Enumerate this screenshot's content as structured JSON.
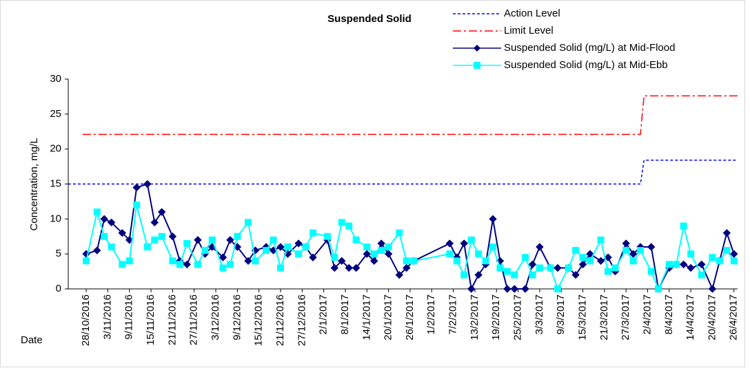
{
  "chart_data": {
    "type": "line",
    "title": "Suspended Solid",
    "x_label": "Date",
    "y_label": "Concentration, mg/L",
    "xlim": [
      "2016-10-23",
      "2017-04-27"
    ],
    "ylim": [
      0,
      30
    ],
    "yticks": [
      0,
      5,
      10,
      15,
      20,
      25,
      30
    ],
    "xticks": [
      {
        "value": "2016-10-28",
        "label": "28/10/2016"
      },
      {
        "value": "2016-11-03",
        "label": "3/11/2016"
      },
      {
        "value": "2016-11-09",
        "label": "9/11/2016"
      },
      {
        "value": "2016-11-15",
        "label": "15/11/2016"
      },
      {
        "value": "2016-11-21",
        "label": "21/11/2016"
      },
      {
        "value": "2016-11-27",
        "label": "27/11/2016"
      },
      {
        "value": "2016-12-03",
        "label": "3/12/2016"
      },
      {
        "value": "2016-12-09",
        "label": "9/12/2016"
      },
      {
        "value": "2016-12-15",
        "label": "15/12/2016"
      },
      {
        "value": "2016-12-21",
        "label": "21/12/2016"
      },
      {
        "value": "2016-12-27",
        "label": "27/12/2016"
      },
      {
        "value": "2017-01-02",
        "label": "2/1/2017"
      },
      {
        "value": "2017-01-08",
        "label": "8/1/2017"
      },
      {
        "value": "2017-01-14",
        "label": "14/1/2017"
      },
      {
        "value": "2017-01-20",
        "label": "20/1/2017"
      },
      {
        "value": "2017-01-26",
        "label": "26/1/2017"
      },
      {
        "value": "2017-02-01",
        "label": "1/2/2017"
      },
      {
        "value": "2017-02-07",
        "label": "7/2/2017"
      },
      {
        "value": "2017-02-13",
        "label": "13/2/2017"
      },
      {
        "value": "2017-02-19",
        "label": "19/2/2017"
      },
      {
        "value": "2017-02-25",
        "label": "25/2/2017"
      },
      {
        "value": "2017-03-03",
        "label": "3/3/2017"
      },
      {
        "value": "2017-03-09",
        "label": "9/3/2017"
      },
      {
        "value": "2017-03-15",
        "label": "15/3/2017"
      },
      {
        "value": "2017-03-21",
        "label": "21/3/2017"
      },
      {
        "value": "2017-03-27",
        "label": "27/3/2017"
      },
      {
        "value": "2017-04-02",
        "label": "2/4/2017"
      },
      {
        "value": "2017-04-08",
        "label": "8/4/2017"
      },
      {
        "value": "2017-04-14",
        "label": "14/4/2017"
      },
      {
        "value": "2017-04-20",
        "label": "20/4/2017"
      },
      {
        "value": "2017-04-26",
        "label": "26/4/2017"
      }
    ],
    "x": [
      "2016-10-28",
      "2016-10-31",
      "2016-11-02",
      "2016-11-04",
      "2016-11-07",
      "2016-11-09",
      "2016-11-11",
      "2016-11-14",
      "2016-11-16",
      "2016-11-18",
      "2016-11-21",
      "2016-11-23",
      "2016-11-25",
      "2016-11-28",
      "2016-11-30",
      "2016-12-02",
      "2016-12-05",
      "2016-12-07",
      "2016-12-09",
      "2016-12-12",
      "2016-12-14",
      "2016-12-17",
      "2016-12-19",
      "2016-12-21",
      "2016-12-23",
      "2016-12-26",
      "2016-12-28",
      "2016-12-30",
      "2017-01-03",
      "2017-01-05",
      "2017-01-07",
      "2017-01-09",
      "2017-01-11",
      "2017-01-14",
      "2017-01-16",
      "2017-01-18",
      "2017-01-20",
      "2017-01-23",
      "2017-01-25",
      "2017-01-27",
      "2017-02-06",
      "2017-02-08",
      "2017-02-10",
      "2017-02-12",
      "2017-02-14",
      "2017-02-16",
      "2017-02-18",
      "2017-02-20",
      "2017-02-22",
      "2017-02-24",
      "2017-02-27",
      "2017-03-01",
      "2017-03-03",
      "2017-03-06",
      "2017-03-08",
      "2017-03-11",
      "2017-03-13",
      "2017-03-15",
      "2017-03-17",
      "2017-03-20",
      "2017-03-22",
      "2017-03-24",
      "2017-03-27",
      "2017-03-29",
      "2017-03-31",
      "2017-04-03",
      "2017-04-05",
      "2017-04-08",
      "2017-04-10",
      "2017-04-12",
      "2017-04-14",
      "2017-04-17",
      "2017-04-20",
      "2017-04-22",
      "2017-04-24",
      "2017-04-26"
    ],
    "series": [
      {
        "name": "Action Level",
        "color": "#0000ff",
        "dash": "4,3",
        "marker": "none",
        "x": [
          "2016-10-23",
          "2017-03-31",
          "2017-04-01",
          "2017-04-27"
        ],
        "values": [
          15,
          15,
          18.4,
          18.4
        ]
      },
      {
        "name": "Limit Level",
        "color": "#ff0000",
        "dash": "12,4,3,4",
        "marker": "none",
        "x": [
          "2016-10-27",
          "2017-03-31",
          "2017-04-01",
          "2017-04-27"
        ],
        "values": [
          22.1,
          22.1,
          27.6,
          27.6
        ]
      },
      {
        "name": "Suspended Solid (mg/L) at Mid-Flood",
        "color": "#000080",
        "dash": "none",
        "marker": "diamond",
        "values": [
          5,
          5.5,
          10,
          9.5,
          8,
          7,
          14.5,
          15,
          9.5,
          11,
          7.5,
          4,
          3.5,
          7,
          5,
          6,
          4.5,
          7,
          6,
          4,
          5.5,
          6,
          5.5,
          6,
          5,
          6.5,
          6,
          4.5,
          7,
          3,
          4,
          3,
          3,
          5,
          4,
          6.5,
          5,
          2,
          3,
          4,
          6.5,
          4.5,
          6.5,
          0,
          2,
          3.5,
          10,
          4,
          0,
          0,
          0,
          3.5,
          6,
          3,
          3,
          3,
          2,
          3.5,
          5,
          4,
          4.5,
          2.5,
          6.5,
          5,
          6,
          6,
          0,
          3,
          3.5,
          3.5,
          3,
          3.5,
          0,
          4,
          8,
          5
        ]
      },
      {
        "name": "Suspended Solid (mg/L) at Mid-Ebb",
        "color": "#00ffff",
        "dash": "none",
        "marker": "square",
        "values": [
          4,
          11,
          7.5,
          6,
          3.5,
          4,
          12,
          6,
          7,
          7.5,
          4,
          3.5,
          6.5,
          3.5,
          5.5,
          7,
          3,
          3.5,
          7.5,
          9.5,
          4,
          5.5,
          7,
          3,
          6,
          5,
          6,
          8,
          7.5,
          4.5,
          9.5,
          9,
          7,
          6,
          5,
          5.5,
          6,
          8,
          4,
          4,
          5,
          4,
          2,
          7,
          5,
          4,
          6,
          3,
          2.5,
          2,
          4.5,
          2,
          3,
          3,
          0,
          3,
          5.5,
          4.5,
          4,
          7,
          2.5,
          3,
          5.5,
          4,
          5.5,
          2.5,
          0,
          3.5,
          3.5,
          9,
          5,
          2,
          4.5,
          4,
          5.5,
          4
        ]
      }
    ]
  }
}
